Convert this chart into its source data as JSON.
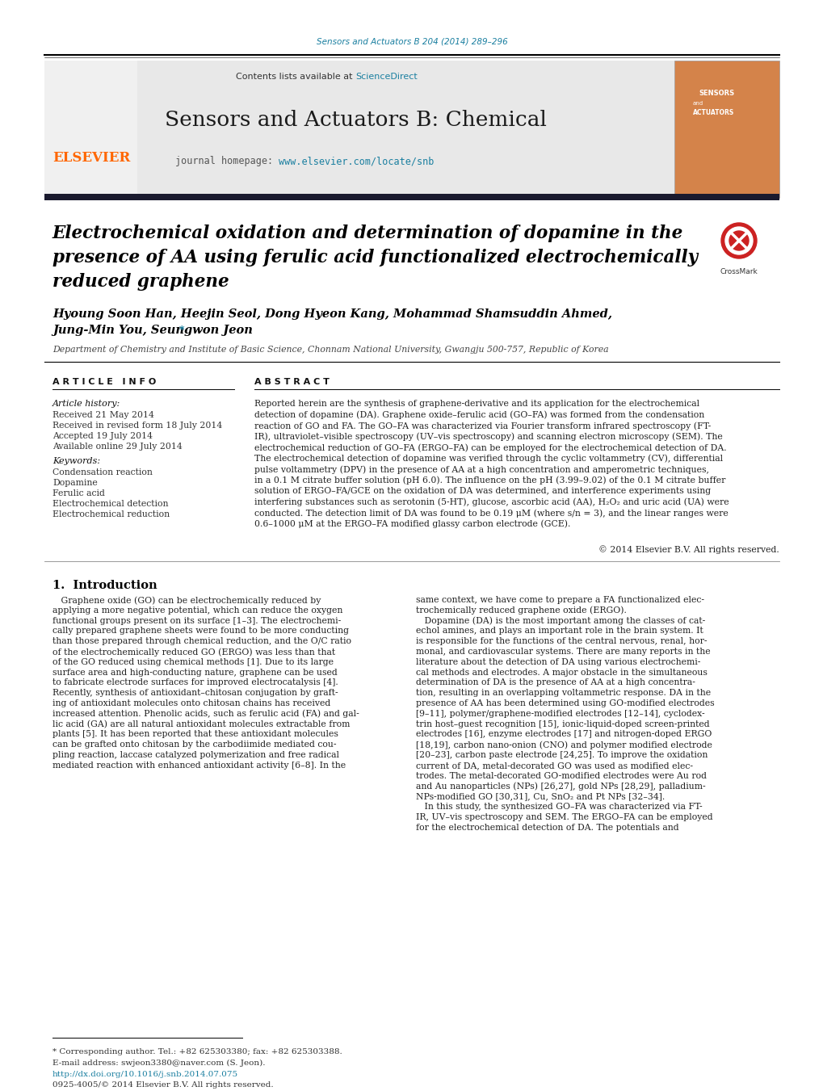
{
  "page_bg": "#ffffff",
  "top_journal_ref": "Sensors and Actuators B 204 (2014) 289–296",
  "top_journal_ref_color": "#1a7fa0",
  "header_bg": "#e8e8e8",
  "header_contents_text": "Contents lists available at ",
  "header_sciencedirect": "ScienceDirect",
  "header_sciencedirect_color": "#1a7fa0",
  "journal_title": "Sensors and Actuators B: Chemical",
  "journal_homepage_prefix": "journal homepage: ",
  "journal_homepage_url": "www.elsevier.com/locate/snb",
  "journal_homepage_url_color": "#1a7fa0",
  "elsevier_color": "#FF6600",
  "dark_bar_color": "#1a1a2e",
  "paper_title": "Electrochemical oxidation and determination of dopamine in the\npresence of AA using ferulic acid functionalized electrochemically\nreduced graphene",
  "authors": "Hyoung Soon Han, Heejin Seol, Dong Hyeon Kang, Mohammad Shamsuddin Ahmed,\nJung-Min You, Seungwon Jeon",
  "affiliation": "Department of Chemistry and Institute of Basic Science, Chonnam National University, Gwangju 500-757, Republic of Korea",
  "article_info_header": "A R T I C L E   I N F O",
  "abstract_header": "A B S T R A C T",
  "article_history_label": "Article history:",
  "received": "Received 21 May 2014",
  "revised": "Received in revised form 18 July 2014",
  "accepted": "Accepted 19 July 2014",
  "available": "Available online 29 July 2014",
  "keywords_label": "Keywords:",
  "keyword1": "Condensation reaction",
  "keyword2": "Dopamine",
  "keyword3": "Ferulic acid",
  "keyword4": "Electrochemical detection",
  "keyword5": "Electrochemical reduction",
  "abstract_text": "Reported herein are the synthesis of graphene-derivative and its application for the electrochemical\ndetection of dopamine (DA). Graphene oxide–ferulic acid (GO–FA) was formed from the condensation\nreaction of GO and FA. The GO–FA was characterized via Fourier transform infrared spectroscopy (FT-\nIR), ultraviolet–visible spectroscopy (UV–vis spectroscopy) and scanning electron microscopy (SEM). The\nelectrochemical reduction of GO–FA (ERGO–FA) can be employed for the electrochemical detection of DA.\nThe electrochemical detection of dopamine was verified through the cyclic voltammetry (CV), differential\npulse voltammetry (DPV) in the presence of AA at a high concentration and amperometric techniques,\nin a 0.1 M citrate buffer solution (pH 6.0). The influence on the pH (3.99–9.02) of the 0.1 M citrate buffer\nsolution of ERGO–FA/GCE on the oxidation of DA was determined, and interference experiments using\ninterfering substances such as serotonin (5-HT), glucose, ascorbic acid (AA), H₂O₂ and uric acid (UA) were\nconducted. The detection limit of DA was found to be 0.19 μM (where s/n = 3), and the linear ranges were\n0.6–1000 μM at the ERGO–FA modified glassy carbon electrode (GCE).",
  "copyright": "© 2014 Elsevier B.V. All rights reserved.",
  "intro_header": "1.  Introduction",
  "intro_col1": "   Graphene oxide (GO) can be electrochemically reduced by\napplying a more negative potential, which can reduce the oxygen\nfunctional groups present on its surface [1–3]. The electrochemi-\ncally prepared graphene sheets were found to be more conducting\nthan those prepared through chemical reduction, and the O/C ratio\nof the electrochemically reduced GO (ERGO) was less than that\nof the GO reduced using chemical methods [1]. Due to its large\nsurface area and high-conducting nature, graphene can be used\nto fabricate electrode surfaces for improved electrocatalysis [4].\nRecently, synthesis of antioxidant–chitosan conjugation by graft-\ning of antioxidant molecules onto chitosan chains has received\nincreased attention. Phenolic acids, such as ferulic acid (FA) and gal-\nlic acid (GA) are all natural antioxidant molecules extractable from\nplants [5]. It has been reported that these antioxidant molecules\ncan be grafted onto chitosan by the carbodiimide mediated cou-\npling reaction, laccase catalyzed polymerization and free radical\nmediated reaction with enhanced antioxidant activity [6–8]. In the",
  "intro_col2": "same context, we have come to prepare a FA functionalized elec-\ntrochemically reduced graphene oxide (ERGO).\n   Dopamine (DA) is the most important among the classes of cat-\nechol amines, and plays an important role in the brain system. It\nis responsible for the functions of the central nervous, renal, hor-\nmonal, and cardiovascular systems. There are many reports in the\nliterature about the detection of DA using various electrochemi-\ncal methods and electrodes. A major obstacle in the simultaneous\ndetermination of DA is the presence of AA at a high concentra-\ntion, resulting in an overlapping voltammetric response. DA in the\npresence of AA has been determined using GO-modified electrodes\n[9–11], polymer/graphene-modified electrodes [12–14], cyclodex-\ntrin host–guest recognition [15], ionic-liquid-doped screen-printed\nelectrodes [16], enzyme electrodes [17] and nitrogen-doped ERGO\n[18,19], carbon nano-onion (CNO) and polymer modified electrode\n[20–23], carbon paste electrode [24,25]. To improve the oxidation\ncurrent of DA, metal-decorated GO was used as modified elec-\ntrodes. The metal-decorated GO-modified electrodes were Au rod\nand Au nanoparticles (NPs) [26,27], gold NPs [28,29], palladium-\nNPs-modified GO [30,31], Cu, SnO₂ and Pt NPs [32–34].\n   In this study, the synthesized GO–FA was characterized via FT-\nIR, UV–vis spectroscopy and SEM. The ERGO–FA can be employed\nfor the electrochemical detection of DA. The potentials and",
  "footnote_corresponding": "* Corresponding author. Tel.: +82 625303380; fax: +82 625303388.",
  "footnote_email": "E-mail address: swjeon3380@naver.com (S. Jeon).",
  "footnote_doi": "http://dx.doi.org/10.1016/j.snb.2014.07.075",
  "footnote_issn": "0925-4005/© 2014 Elsevier B.V. All rights reserved.",
  "doi_color": "#1a7fa0"
}
